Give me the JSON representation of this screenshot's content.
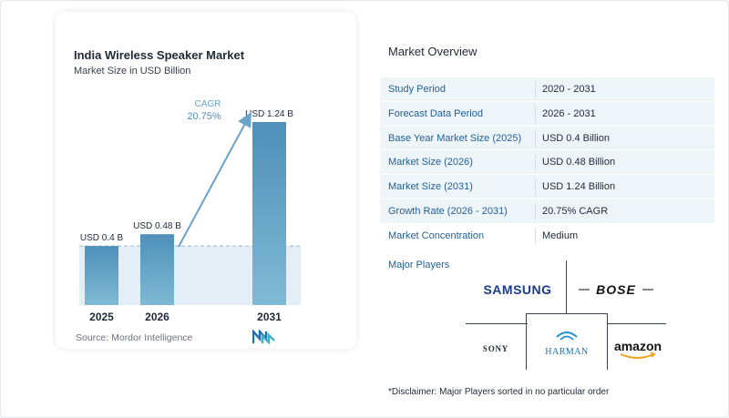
{
  "chart_data": {
    "type": "bar",
    "title": "India Wireless Speaker Market",
    "subtitle": "Market Size in USD Billion",
    "categories": [
      "2025",
      "2026",
      "2031"
    ],
    "values": [
      0.4,
      0.48,
      1.24
    ],
    "data_labels": [
      "USD 0.4 B",
      "USD 0.48 B",
      "USD 1.24 B"
    ],
    "cagr_label": "CAGR",
    "cagr_value": "20.75%",
    "colors": {
      "bar_top": "#4f8fb9",
      "bar_bottom": "#7fb9d6",
      "band": "#e3eef6",
      "arrow": "#6aa3c9",
      "dashed": "#8fb5cf"
    }
  },
  "source": "Source: Mordor Intelligence",
  "overview": {
    "title": "Market Overview",
    "rows": [
      {
        "label": "Study Period",
        "value": "2020 - 2031"
      },
      {
        "label": "Forecast Data Period",
        "value": "2026 - 2031"
      },
      {
        "label": "Base Year Market Size (2025)",
        "value": "USD 0.4 Billion"
      },
      {
        "label": "Market Size (2026)",
        "value": "USD 0.48 Billion"
      },
      {
        "label": "Market Size (2031)",
        "value": "USD 1.24 Billion"
      },
      {
        "label": "Growth Rate (2026 - 2031)",
        "value": "20.75% CAGR"
      },
      {
        "label": "Market Concentration",
        "value": "Medium"
      }
    ]
  },
  "players": {
    "title": "Major Players",
    "logos": [
      "SAMSUNG",
      "BOSE",
      "SONY",
      "HARMAN",
      "amazon"
    ]
  },
  "disclaimer": "*Disclaimer: Major Players sorted in no particular order"
}
